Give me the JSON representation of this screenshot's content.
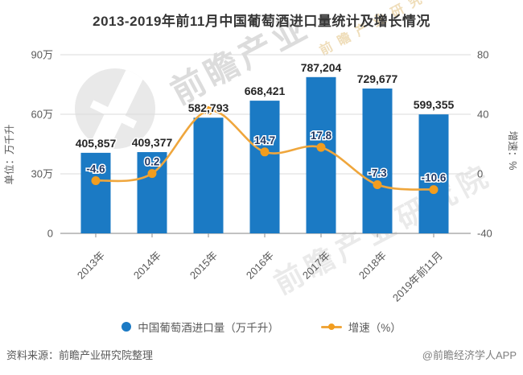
{
  "title": "2013-2019年前11月中国葡萄酒进口量统计及增长情况",
  "chart_data": {
    "type": "combo-bar-line",
    "categories": [
      "2013年",
      "2014年",
      "2015年",
      "2016年",
      "2017年",
      "2018年",
      "2019年前11月"
    ],
    "series": [
      {
        "name": "中国葡萄酒进口量（万千升）",
        "type": "bar",
        "axis": "left",
        "color": "#1B7AC4",
        "values": [
          405857,
          409377,
          582793,
          668421,
          787204,
          729677,
          599355
        ],
        "labels": [
          "405,857",
          "409,377",
          "582,793",
          "668,421",
          "787,204",
          "729,677",
          "599,355"
        ]
      },
      {
        "name": "增速（%）",
        "type": "line",
        "axis": "right",
        "color": "#EFA63C",
        "marker_color": "#F29D1E",
        "values": [
          -4.6,
          0.2,
          42.4,
          14.7,
          17.8,
          -7.3,
          -10.6
        ],
        "labels": [
          "-4.6",
          "0.2",
          "",
          "14.7",
          "17.8",
          "-7.3",
          "-10.6"
        ],
        "note": "2015 point label is hidden behind the bar value label in the source; 42.4 read from line position"
      }
    ],
    "left_axis": {
      "name": "单位：万千升",
      "tick_values": [
        0,
        300000,
        600000,
        900000
      ],
      "tick_labels": [
        "0",
        "30万",
        "60万",
        "90万"
      ],
      "min": 0,
      "max": 900000
    },
    "right_axis": {
      "name": "增速：%",
      "tick_values": [
        -40,
        0,
        40,
        80
      ],
      "tick_labels": [
        "-40",
        "0",
        "40",
        "80"
      ],
      "min": -40,
      "max": 80
    },
    "grid": true,
    "legend_position": "bottom"
  },
  "watermarks": {
    "big_gray": "前瞻产业",
    "mid_gray": "前瞻产业研究院",
    "gold": "前瞻产业研究院"
  },
  "footer": {
    "source": "资料来源：前瞻产业研究院整理",
    "credit": "@前瞻经济学人APP"
  },
  "colors": {
    "bar": "#1B7AC4",
    "line": "#EFA63C",
    "dot": "#F29D1E",
    "grid": "#DBDBDB",
    "axis_line": "#9E9E9E",
    "axis_text": "#595959",
    "bar_label": "#262626",
    "line_label": "#203864",
    "title": "#363636"
  }
}
